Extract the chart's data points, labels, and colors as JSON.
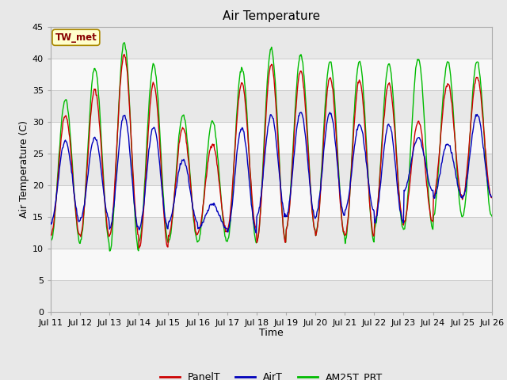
{
  "title": "Air Temperature",
  "xlabel": "Time",
  "ylabel": "Air Temperature (C)",
  "ylim": [
    0,
    45
  ],
  "yticks": [
    0,
    5,
    10,
    15,
    20,
    25,
    30,
    35,
    40,
    45
  ],
  "xticklabels": [
    "Jul 11",
    "Jul 12",
    "Jul 13",
    "Jul 14",
    "Jul 15",
    "Jul 16",
    "Jul 17",
    "Jul 18",
    "Jul 19",
    "Jul 20",
    "Jul 21",
    "Jul 22",
    "Jul 23",
    "Jul 24",
    "Jul 25",
    "Jul 26"
  ],
  "outer_bg": "#e8e8e8",
  "plot_bg": "#ffffee",
  "band_light": "#e8e8e8",
  "band_white": "#f8f8f8",
  "legend_labels": [
    "PanelT",
    "AirT",
    "AM25T_PRT"
  ],
  "legend_colors": [
    "#cc0000",
    "#0000bb",
    "#00bb00"
  ],
  "annotation_text": "TW_met",
  "annotation_color": "#880000",
  "annotation_bg": "#ffffcc",
  "annotation_border": "#aa8800",
  "line_width": 1.0,
  "panel_maxes": [
    31,
    35,
    40.5,
    36,
    29,
    26.5,
    36,
    39,
    38,
    37,
    36.5,
    36,
    30,
    36,
    37
  ],
  "panel_mins": [
    12,
    12,
    12,
    10,
    12,
    12.5,
    13,
    11,
    13,
    12,
    12,
    14,
    14,
    18,
    18
  ],
  "air_maxes": [
    27,
    27.5,
    31,
    29,
    24,
    17,
    29,
    31,
    31.5,
    31.5,
    29.5,
    29.5,
    27.5,
    26.5,
    31
  ],
  "air_mins": [
    14,
    14.5,
    13,
    13,
    14,
    13,
    12.5,
    15,
    15,
    15,
    16,
    14,
    19,
    18,
    18
  ],
  "am25_maxes": [
    33.5,
    38.5,
    42.5,
    39,
    31,
    30,
    38.5,
    41.5,
    40.5,
    39.5,
    39.5,
    39,
    40,
    39.5,
    39.5
  ],
  "am25_mins": [
    11,
    11,
    9.5,
    11,
    11,
    11,
    11,
    11,
    13,
    12,
    11,
    13,
    13,
    15,
    15
  ]
}
